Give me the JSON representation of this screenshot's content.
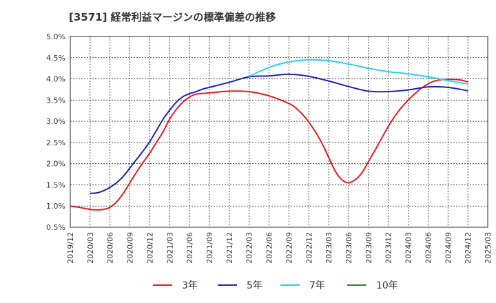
{
  "chart_data": {
    "type": "line",
    "title": "[3571]  経常利益マージンの標準偏差の推移",
    "xlabel": "",
    "ylabel": "",
    "ylim": [
      0.5,
      5.0
    ],
    "yticks": [
      "0.5%",
      "1.0%",
      "1.5%",
      "2.0%",
      "2.5%",
      "3.0%",
      "3.5%",
      "4.0%",
      "4.5%",
      "5.0%"
    ],
    "xticks": [
      "2019/12",
      "2020/03",
      "2020/06",
      "2020/09",
      "2020/12",
      "2021/03",
      "2021/06",
      "2021/09",
      "2021/12",
      "2022/03",
      "2022/06",
      "2022/09",
      "2022/12",
      "2023/03",
      "2023/06",
      "2023/09",
      "2023/12",
      "2024/03",
      "2024/06",
      "2024/09",
      "2024/12",
      "2025/03"
    ],
    "grid": true,
    "legend_position": "bottom",
    "series": [
      {
        "name": "3年",
        "color": "#e31a1c",
        "x": [
          "2019/12",
          "2020/01",
          "2020/02",
          "2020/03",
          "2020/04",
          "2020/05",
          "2020/06",
          "2020/07",
          "2020/08",
          "2020/09",
          "2020/10",
          "2020/11",
          "2020/12",
          "2021/01",
          "2021/02",
          "2021/03",
          "2021/04",
          "2021/05",
          "2021/06",
          "2021/07",
          "2021/09",
          "2021/12",
          "2022/03",
          "2022/06",
          "2022/09",
          "2022/10",
          "2022/11",
          "2022/12",
          "2023/01",
          "2023/02",
          "2023/03",
          "2023/04",
          "2023/05",
          "2023/06",
          "2023/07",
          "2023/08",
          "2023/09",
          "2023/10",
          "2023/12",
          "2024/01",
          "2024/02",
          "2024/03",
          "2024/04",
          "2024/05",
          "2024/06",
          "2024/07",
          "2024/08",
          "2024/09",
          "2024/10",
          "2024/11",
          "2024/12"
        ],
        "y": [
          1.0,
          0.98,
          0.95,
          0.92,
          0.91,
          0.92,
          0.97,
          1.1,
          1.3,
          1.55,
          1.8,
          2.03,
          2.25,
          2.5,
          2.75,
          3.05,
          3.28,
          3.45,
          3.57,
          3.64,
          3.67,
          3.71,
          3.7,
          3.6,
          3.42,
          3.32,
          3.17,
          2.98,
          2.75,
          2.48,
          2.15,
          1.82,
          1.62,
          1.55,
          1.62,
          1.78,
          2.05,
          2.32,
          2.88,
          3.12,
          3.33,
          3.5,
          3.65,
          3.78,
          3.88,
          3.95,
          3.98,
          3.99,
          3.99,
          3.97,
          3.93
        ]
      },
      {
        "name": "5年",
        "color": "#1f1fbf",
        "x": [
          "2020/03",
          "2020/04",
          "2020/05",
          "2020/06",
          "2020/07",
          "2020/08",
          "2020/09",
          "2020/10",
          "2020/11",
          "2020/12",
          "2021/01",
          "2021/02",
          "2021/03",
          "2021/04",
          "2021/05",
          "2021/06",
          "2021/07",
          "2021/08",
          "2021/09",
          "2021/12",
          "2022/03",
          "2022/06",
          "2022/09",
          "2022/12",
          "2023/03",
          "2023/06",
          "2023/09",
          "2023/12",
          "2024/03",
          "2024/06",
          "2024/09",
          "2024/12"
        ],
        "y": [
          1.3,
          1.31,
          1.36,
          1.44,
          1.55,
          1.7,
          1.9,
          2.1,
          2.3,
          2.52,
          2.78,
          3.05,
          3.26,
          3.45,
          3.58,
          3.65,
          3.7,
          3.76,
          3.8,
          3.92,
          4.05,
          4.07,
          4.11,
          4.06,
          3.95,
          3.82,
          3.71,
          3.7,
          3.74,
          3.81,
          3.8,
          3.72
        ]
      },
      {
        "name": "7年",
        "color": "#22d3ee",
        "x": [
          "2022/03",
          "2022/06",
          "2022/09",
          "2022/12",
          "2023/03",
          "2023/06",
          "2023/09",
          "2023/12",
          "2024/03",
          "2024/06",
          "2024/09",
          "2024/12"
        ],
        "y": [
          4.06,
          4.27,
          4.4,
          4.45,
          4.43,
          4.35,
          4.25,
          4.17,
          4.12,
          4.05,
          3.96,
          3.88
        ]
      },
      {
        "name": "10年",
        "color": "#228b22",
        "x": [],
        "y": []
      }
    ]
  }
}
